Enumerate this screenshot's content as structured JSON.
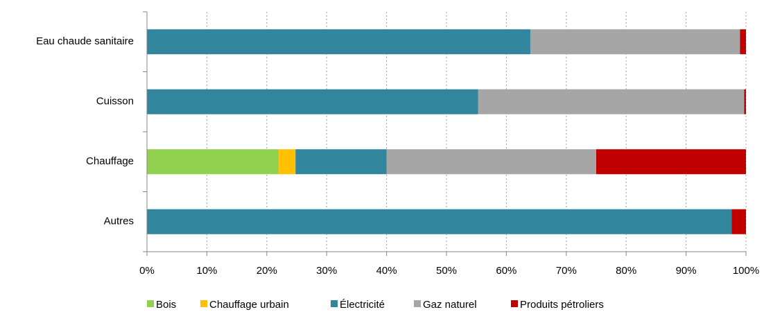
{
  "chart_data": {
    "type": "stacked_barh",
    "categories": [
      "Eau chaude sanitaire",
      "Cuisson",
      "Chauffage",
      "Autres"
    ],
    "series": [
      {
        "name": "Bois",
        "color": "#92d050",
        "values": [
          0,
          0,
          22,
          0
        ]
      },
      {
        "name": "Chauffage urbain",
        "color": "#ffc000",
        "values": [
          0,
          0,
          2.8,
          0
        ]
      },
      {
        "name": "Électricité",
        "color": "#31859c",
        "values": [
          64,
          55.3,
          15.2,
          97.6
        ]
      },
      {
        "name": "Gaz naturel",
        "color": "#a6a6a6",
        "values": [
          35,
          44.4,
          35,
          0
        ]
      },
      {
        "name": "Produits pétroliers",
        "color": "#c00000",
        "values": [
          1,
          0.3,
          25,
          2.4
        ]
      }
    ],
    "xlim": [
      0,
      100
    ],
    "xticks": [
      {
        "value": 0,
        "label": "0%"
      },
      {
        "value": 10,
        "label": "10%"
      },
      {
        "value": 20,
        "label": "20%"
      },
      {
        "value": 30,
        "label": "30%"
      },
      {
        "value": 40,
        "label": "40%"
      },
      {
        "value": 50,
        "label": "50%"
      },
      {
        "value": 60,
        "label": "60%"
      },
      {
        "value": 70,
        "label": "70%"
      },
      {
        "value": 80,
        "label": "80%"
      },
      {
        "value": 90,
        "label": "90%"
      },
      {
        "value": 100,
        "label": "100%"
      }
    ],
    "grid": true,
    "legend": "bottom"
  }
}
